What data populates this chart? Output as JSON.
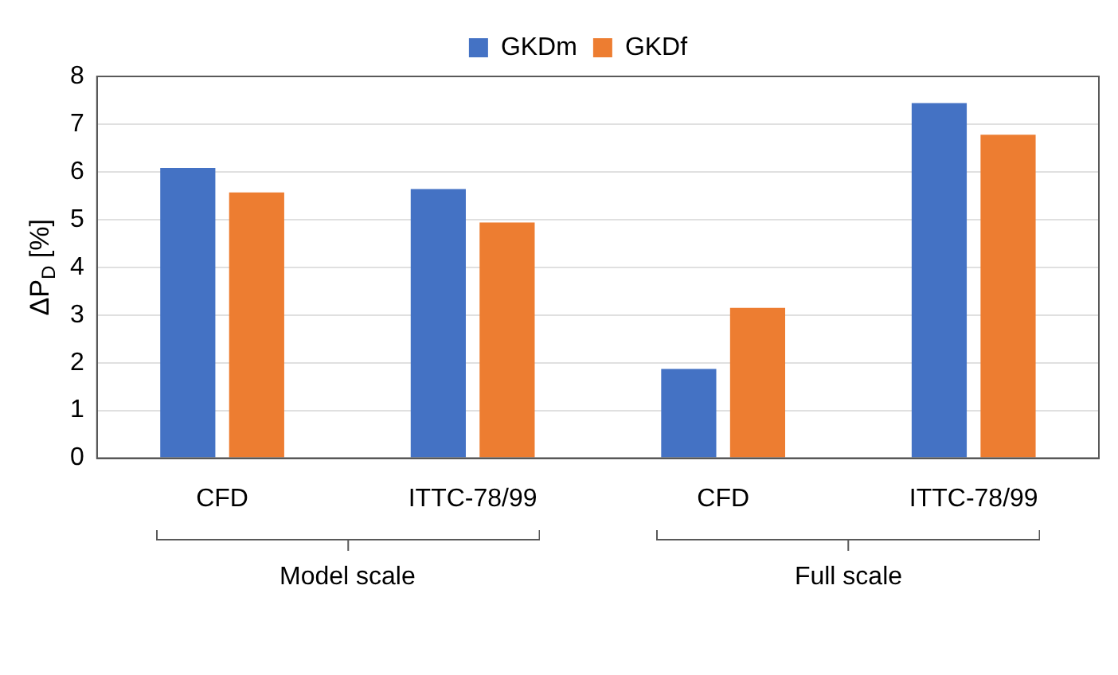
{
  "chart_data": {
    "type": "bar",
    "ylabel": "ΔP$_{D}$ [%]",
    "categories": [
      "CFD",
      "ITTC-78/99",
      "CFD",
      "ITTC-78/99"
    ],
    "series": [
      {
        "name": "GKDm",
        "color": "#4472c4",
        "values": [
          6.08,
          5.64,
          1.87,
          7.44
        ]
      },
      {
        "name": "GKDf",
        "color": "#ed7d31",
        "values": [
          5.57,
          4.94,
          3.15,
          6.78
        ]
      }
    ],
    "ylim": [
      0,
      8
    ],
    "yticks": [
      0,
      1,
      2,
      3,
      4,
      5,
      6,
      7,
      8
    ],
    "grid": "y",
    "legend": "top",
    "annotations": [
      "Model scale",
      "Full scale"
    ]
  }
}
